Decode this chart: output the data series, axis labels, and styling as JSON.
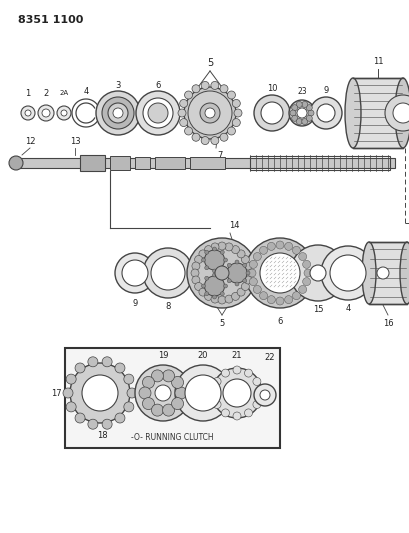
{
  "title": "8351 1100",
  "background_color": "#ffffff",
  "line_color": "#444444",
  "text_color": "#222222",
  "fig_width": 4.1,
  "fig_height": 5.33,
  "dpi": 100,
  "clutch_label": "-O- RUNNING CLUTCH"
}
